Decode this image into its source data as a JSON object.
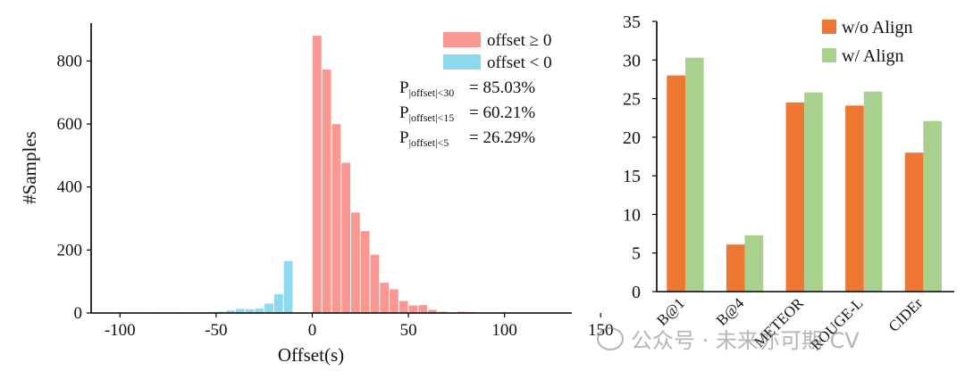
{
  "chart_data": [
    {
      "type": "bar",
      "subtype": "histogram",
      "title": "",
      "xlabel": "Offset(s)",
      "ylabel": "#Samples",
      "xlim": [
        -115,
        135
      ],
      "ylim": [
        0,
        920
      ],
      "bin_width": 5,
      "xticks": [
        "-100",
        "-50",
        "0",
        "50",
        "100",
        "150"
      ],
      "yticks": [
        "0",
        "200",
        "400",
        "600",
        "800"
      ],
      "series": [
        {
          "name": "offset ≥ 0",
          "color": "#fa9790",
          "bins": [
            {
              "x0": 0,
              "value": 880
            },
            {
              "x0": 5,
              "value": 773
            },
            {
              "x0": 10,
              "value": 600
            },
            {
              "x0": 15,
              "value": 477
            },
            {
              "x0": 20,
              "value": 319
            },
            {
              "x0": 25,
              "value": 260
            },
            {
              "x0": 30,
              "value": 185
            },
            {
              "x0": 35,
              "value": 96
            },
            {
              "x0": 40,
              "value": 75
            },
            {
              "x0": 45,
              "value": 38
            },
            {
              "x0": 50,
              "value": 24
            },
            {
              "x0": 55,
              "value": 25
            },
            {
              "x0": 60,
              "value": 10
            },
            {
              "x0": 65,
              "value": 4
            },
            {
              "x0": 70,
              "value": 0
            },
            {
              "x0": 75,
              "value": 4
            },
            {
              "x0": 80,
              "value": 3
            }
          ]
        },
        {
          "name": "offset < 0",
          "color": "#8dd9f0",
          "bins": [
            {
              "x0": -110,
              "value": 2
            },
            {
              "x0": -105,
              "value": 2
            },
            {
              "x0": -100,
              "value": 2
            },
            {
              "x0": -95,
              "value": 2
            },
            {
              "x0": -90,
              "value": 2
            },
            {
              "x0": -85,
              "value": 2
            },
            {
              "x0": -80,
              "value": 2
            },
            {
              "x0": -75,
              "value": 2
            },
            {
              "x0": -70,
              "value": 2
            },
            {
              "x0": -65,
              "value": 2
            },
            {
              "x0": -60,
              "value": 2
            },
            {
              "x0": -55,
              "value": 3
            },
            {
              "x0": -50,
              "value": 4
            },
            {
              "x0": -45,
              "value": 8
            },
            {
              "x0": -40,
              "value": 13
            },
            {
              "x0": -35,
              "value": 12
            },
            {
              "x0": -30,
              "value": 14
            },
            {
              "x0": -25,
              "value": 30
            },
            {
              "x0": -20,
              "value": 60
            },
            {
              "x0": -15,
              "value": 165
            }
          ]
        }
      ],
      "legend": [
        {
          "label": "offset ≥ 0",
          "color": "#fa9790"
        },
        {
          "label": "offset < 0",
          "color": "#8dd9f0"
        }
      ],
      "legend_position": "top-right",
      "annotations": [
        {
          "symbol": "P",
          "subscript": "|offset|<30",
          "value": "= 85.03%"
        },
        {
          "symbol": "P",
          "subscript": "|offset|<15",
          "value": "= 60.21%"
        },
        {
          "symbol": "P",
          "subscript": "|offset|<5",
          "value": "= 26.29%"
        }
      ]
    },
    {
      "type": "bar",
      "title": "",
      "xlabel": "",
      "ylabel": "",
      "ylim": [
        0,
        35
      ],
      "yticks": [
        "0",
        "5",
        "10",
        "15",
        "20",
        "25",
        "30",
        "35"
      ],
      "categories": [
        "B@1",
        "B@4",
        "METEOR",
        "ROUGE-L",
        "CIDEr"
      ],
      "series": [
        {
          "name": "w/o Align",
          "color": "#ee7733",
          "values": [
            28.0,
            6.1,
            24.5,
            24.1,
            18.0
          ]
        },
        {
          "name": "w/ Align",
          "color": "#a9d18e",
          "values": [
            30.3,
            7.3,
            25.8,
            25.9,
            22.1
          ]
        }
      ],
      "legend_position": "top-right"
    }
  ],
  "watermark": {
    "text": "公众号 · 未来亦可期 CV"
  }
}
